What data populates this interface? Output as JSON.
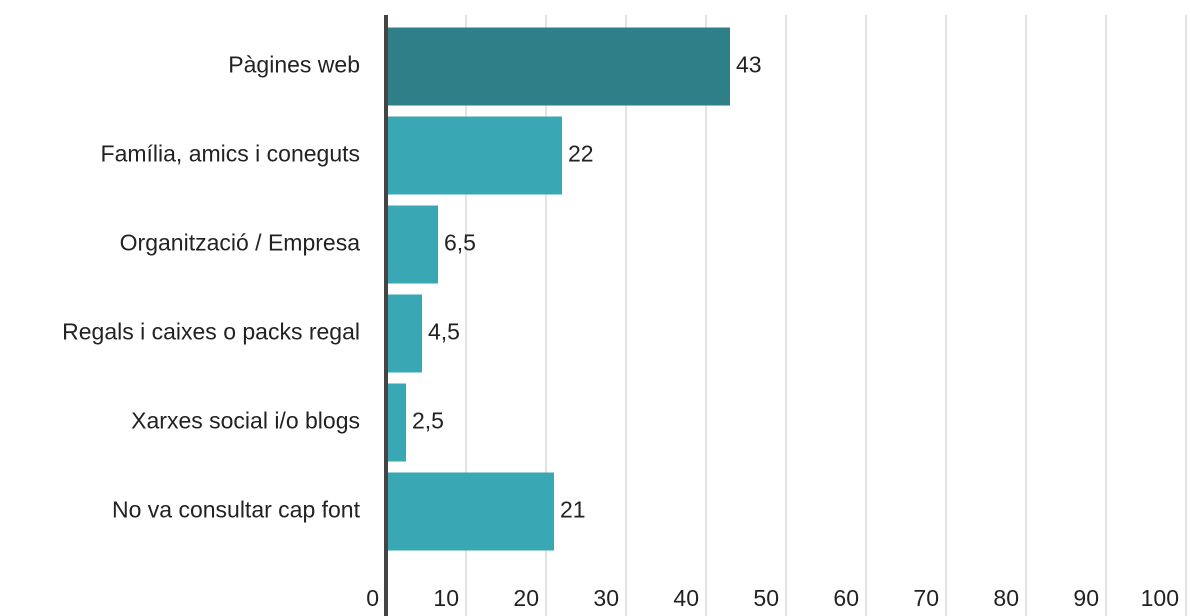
{
  "chart_data": {
    "type": "bar",
    "orientation": "horizontal",
    "categories": [
      "Pàgines web",
      "Família, amics i coneguts",
      "Organització / Empresa",
      "Regals i caixes o packs regal",
      "Xarxes social i/o blogs",
      "No va consultar cap font"
    ],
    "values": [
      43,
      22,
      6.5,
      4.5,
      2.5,
      21
    ],
    "value_labels": [
      "43",
      "22",
      "6,5",
      "4,5",
      "2,5",
      "21"
    ],
    "colors": [
      "#2e7f87",
      "#3aa7b5",
      "#3aa7b5",
      "#3aa7b5",
      "#3aa7b5",
      "#3aa7b5"
    ],
    "xlim": [
      0,
      100
    ],
    "xticks": [
      0,
      10,
      20,
      30,
      40,
      50,
      60,
      70,
      80,
      90,
      100
    ],
    "grid": true
  }
}
